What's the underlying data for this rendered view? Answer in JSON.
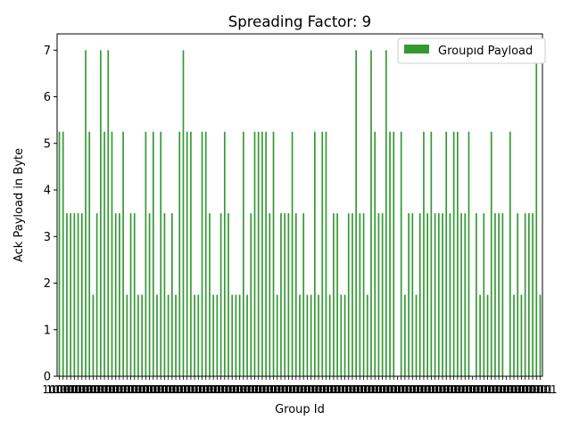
{
  "chart_data": {
    "type": "bar",
    "title": "Spreading Factor: 9",
    "xlabel": "Group Id",
    "ylabel": "Ack Payload in Byte",
    "ylim": [
      0,
      7.35
    ],
    "yticks": [
      0,
      1,
      2,
      3,
      4,
      5,
      6,
      7
    ],
    "xlim": [
      -0.6,
      128.6
    ],
    "grid": false,
    "legend": {
      "position": "top-right"
    },
    "x_tick_text": "10001",
    "series": [
      {
        "name": "Groupıd Payload",
        "color": "#339933",
        "values": [
          5.25,
          5.25,
          3.5,
          3.5,
          3.5,
          3.5,
          3.5,
          7,
          5.25,
          1.75,
          3.5,
          7,
          5.25,
          7,
          5.25,
          3.5,
          3.5,
          5.25,
          1.75,
          3.5,
          3.5,
          1.75,
          1.75,
          5.25,
          3.5,
          5.25,
          1.75,
          5.25,
          3.5,
          1.75,
          3.5,
          1.75,
          5.25,
          7,
          5.25,
          5.25,
          1.75,
          1.75,
          5.25,
          5.25,
          3.5,
          1.75,
          1.75,
          3.5,
          5.25,
          3.5,
          1.75,
          1.75,
          1.75,
          5.25,
          1.75,
          3.5,
          5.25,
          5.25,
          5.25,
          5.25,
          3.5,
          5.25,
          1.75,
          3.5,
          3.5,
          3.5,
          5.25,
          3.5,
          1.75,
          3.5,
          1.75,
          1.75,
          5.25,
          1.75,
          5.25,
          5.25,
          1.75,
          3.5,
          3.5,
          1.75,
          1.75,
          3.5,
          3.5,
          7,
          3.5,
          3.5,
          1.75,
          7,
          5.25,
          3.5,
          3.5,
          7,
          5.25,
          5.25,
          0,
          5.25,
          1.75,
          3.5,
          3.5,
          1.75,
          3.5,
          5.25,
          3.5,
          5.25,
          3.5,
          3.5,
          3.5,
          5.25,
          3.5,
          5.25,
          5.25,
          3.5,
          3.5,
          5.25,
          0,
          3.5,
          1.75,
          3.5,
          1.75,
          5.25,
          3.5,
          3.5,
          3.5,
          0,
          5.25,
          1.75,
          3.5,
          1.75,
          3.5,
          3.5,
          3.5,
          7,
          1.75
        ]
      }
    ]
  }
}
